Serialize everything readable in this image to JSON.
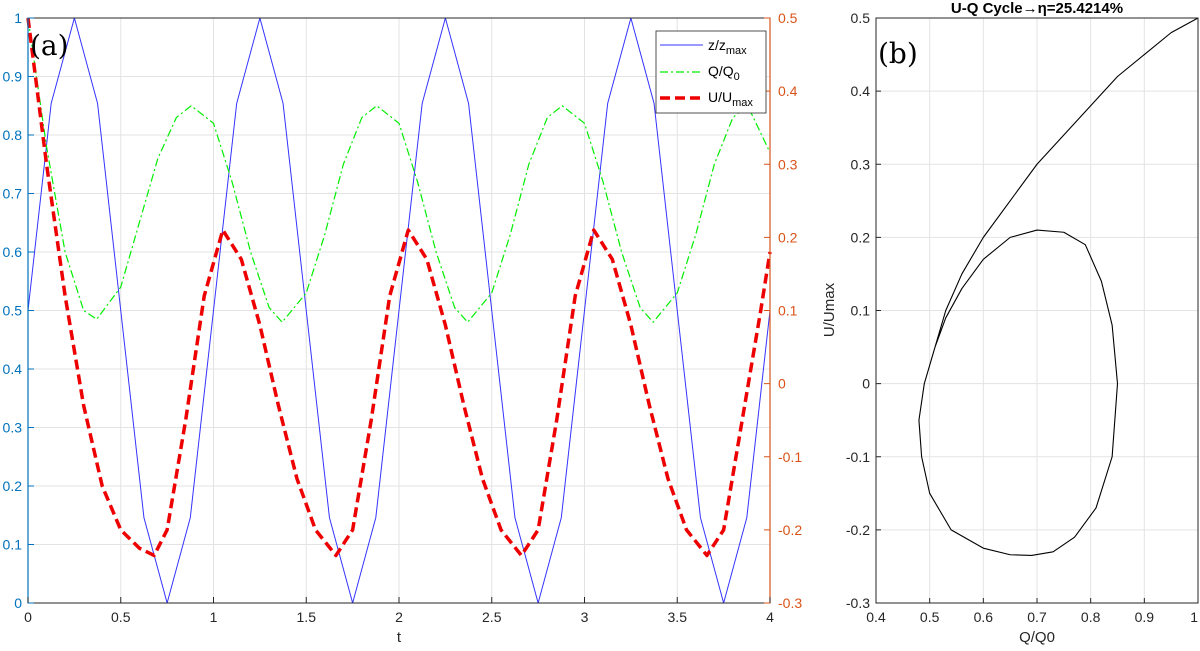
{
  "chart_data": [
    {
      "type": "line",
      "panel_label": "(a)",
      "title": "",
      "xlabel": "t",
      "ylabel_left": "",
      "ylabel_right": "",
      "xlim": [
        0,
        4
      ],
      "ylim_left": [
        0,
        1
      ],
      "ylim_right": [
        -0.3,
        0.5
      ],
      "xticks": [
        "0",
        "0.5",
        "1",
        "1.5",
        "2",
        "2.5",
        "3",
        "3.5",
        "4"
      ],
      "yticks_left": [
        "0",
        "0.1",
        "0.2",
        "0.3",
        "0.4",
        "0.5",
        "0.6",
        "0.7",
        "0.8",
        "0.9",
        "1"
      ],
      "yticks_right": [
        "-0.3",
        "-0.2",
        "-0.1",
        "0",
        "0.1",
        "0.2",
        "0.3",
        "0.4",
        "0.5"
      ],
      "grid": true,
      "legend_position": "top-right",
      "colors": {
        "left_axis": "#0072BD",
        "right_axis": "#D95319"
      },
      "series": [
        {
          "name": "z/z",
          "name_sub": "max",
          "axis": "left",
          "color": "#3333ff",
          "style": "solid",
          "x": [
            0,
            0.125,
            0.25,
            0.375,
            0.5,
            0.625,
            0.75,
            0.875,
            1,
            1.125,
            1.25,
            1.375,
            1.5,
            1.625,
            1.75,
            1.875,
            2,
            2.125,
            2.25,
            2.375,
            2.5,
            2.625,
            2.75,
            2.875,
            3,
            3.125,
            3.25,
            3.375,
            3.5,
            3.625,
            3.75,
            3.875,
            4
          ],
          "y": [
            0.5,
            0.854,
            1,
            0.854,
            0.5,
            0.146,
            0,
            0.146,
            0.5,
            0.854,
            1,
            0.854,
            0.5,
            0.146,
            0,
            0.146,
            0.5,
            0.854,
            1,
            0.854,
            0.5,
            0.146,
            0,
            0.146,
            0.5,
            0.854,
            1,
            0.854,
            0.5,
            0.146,
            0,
            0.146,
            0.5
          ]
        },
        {
          "name": "Q/Q",
          "name_sub": "0",
          "axis": "left",
          "color": "#00ee00",
          "style": "dashdot",
          "x": [
            0,
            0.1,
            0.2,
            0.3,
            0.37,
            0.5,
            0.6,
            0.7,
            0.8,
            0.88,
            1,
            1.1,
            1.2,
            1.3,
            1.37,
            1.5,
            1.6,
            1.7,
            1.8,
            1.88,
            2,
            2.1,
            2.2,
            2.3,
            2.37,
            2.5,
            2.6,
            2.7,
            2.8,
            2.88,
            3,
            3.1,
            3.2,
            3.3,
            3.37,
            3.5,
            3.6,
            3.7,
            3.8,
            3.88,
            4
          ],
          "y": [
            1,
            0.78,
            0.6,
            0.5,
            0.485,
            0.54,
            0.65,
            0.76,
            0.83,
            0.85,
            0.82,
            0.72,
            0.6,
            0.505,
            0.48,
            0.53,
            0.63,
            0.75,
            0.83,
            0.85,
            0.82,
            0.72,
            0.6,
            0.505,
            0.48,
            0.53,
            0.63,
            0.75,
            0.83,
            0.85,
            0.82,
            0.72,
            0.6,
            0.505,
            0.48,
            0.53,
            0.63,
            0.75,
            0.83,
            0.85,
            0.77
          ]
        },
        {
          "name": "U/U",
          "name_sub": "max",
          "axis": "right",
          "color": "#ee0000",
          "style": "dashed",
          "x": [
            0,
            0.1,
            0.2,
            0.3,
            0.4,
            0.5,
            0.6,
            0.68,
            0.75,
            0.85,
            0.95,
            1.05,
            1.15,
            1.25,
            1.35,
            1.45,
            1.55,
            1.66,
            1.75,
            1.85,
            1.95,
            2.05,
            2.15,
            2.25,
            2.35,
            2.45,
            2.55,
            2.66,
            2.75,
            2.85,
            2.95,
            3.05,
            3.15,
            3.25,
            3.35,
            3.45,
            3.55,
            3.66,
            3.75,
            3.85,
            3.95,
            4
          ],
          "y": [
            0.5,
            0.3,
            0.12,
            -0.03,
            -0.14,
            -0.2,
            -0.225,
            -0.235,
            -0.2,
            -0.05,
            0.12,
            0.21,
            0.17,
            0.08,
            -0.03,
            -0.13,
            -0.2,
            -0.235,
            -0.2,
            -0.05,
            0.12,
            0.21,
            0.17,
            0.08,
            -0.03,
            -0.13,
            -0.2,
            -0.235,
            -0.2,
            -0.05,
            0.12,
            0.21,
            0.17,
            0.08,
            -0.03,
            -0.13,
            -0.2,
            -0.235,
            -0.2,
            -0.05,
            0.1,
            0.18
          ]
        }
      ]
    },
    {
      "type": "line",
      "panel_label": "(b)",
      "title": "U-Q Cycle→η=25.4214%",
      "xlabel": "Q/Q0",
      "ylabel": "U/Umax",
      "xlim": [
        0.4,
        1
      ],
      "ylim": [
        -0.3,
        0.5
      ],
      "xticks": [
        "0.4",
        "0.5",
        "0.6",
        "0.7",
        "0.8",
        "0.9",
        "1"
      ],
      "yticks": [
        "-0.3",
        "-0.2",
        "-0.1",
        "0",
        "0.1",
        "0.2",
        "0.3",
        "0.4",
        "0.5"
      ],
      "grid": true,
      "series": [
        {
          "color": "#000000",
          "style": "solid",
          "x": [
            1,
            0.95,
            0.9,
            0.85,
            0.8,
            0.75,
            0.7,
            0.65,
            0.6,
            0.56,
            0.53,
            0.51,
            0.49,
            0.48,
            0.485,
            0.5,
            0.54,
            0.6,
            0.65,
            0.69,
            0.73,
            0.77,
            0.81,
            0.84,
            0.85,
            0.84,
            0.82,
            0.79,
            0.75,
            0.7,
            0.65,
            0.6,
            0.56,
            0.53,
            0.51,
            0.49,
            0.48,
            0.485,
            0.5,
            0.54,
            0.6,
            0.65,
            0.69,
            0.73,
            0.77,
            0.81,
            0.84,
            0.85
          ],
          "y": [
            0.5,
            0.48,
            0.45,
            0.42,
            0.38,
            0.34,
            0.3,
            0.25,
            0.2,
            0.15,
            0.1,
            0.05,
            0,
            -0.05,
            -0.1,
            -0.15,
            -0.2,
            -0.225,
            -0.234,
            -0.235,
            -0.23,
            -0.21,
            -0.17,
            -0.1,
            0,
            0.08,
            0.14,
            0.19,
            0.207,
            0.21,
            0.2,
            0.17,
            0.13,
            0.09,
            0.05,
            0,
            -0.05,
            -0.1,
            -0.15,
            -0.2,
            -0.225,
            -0.234,
            -0.235,
            -0.23,
            -0.21,
            -0.17,
            -0.1,
            0
          ]
        }
      ]
    }
  ]
}
